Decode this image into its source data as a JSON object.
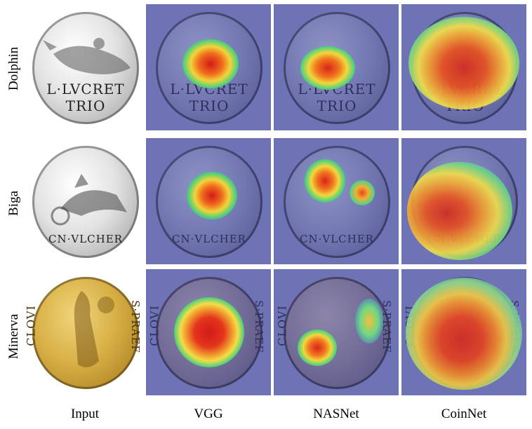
{
  "row_labels": [
    "Dolphin",
    "Biga",
    "Minerva"
  ],
  "column_labels": [
    "Input",
    "VGG",
    "NASNet",
    "CoinNet"
  ],
  "coin_legends": {
    "dolphin_line1": "L·LVCRET",
    "dolphin_line2": "TRIO",
    "biga_exergue": "CN·VLCHER",
    "minerva_left": "CLOVI",
    "minerva_right": "S·PRAEF"
  }
}
